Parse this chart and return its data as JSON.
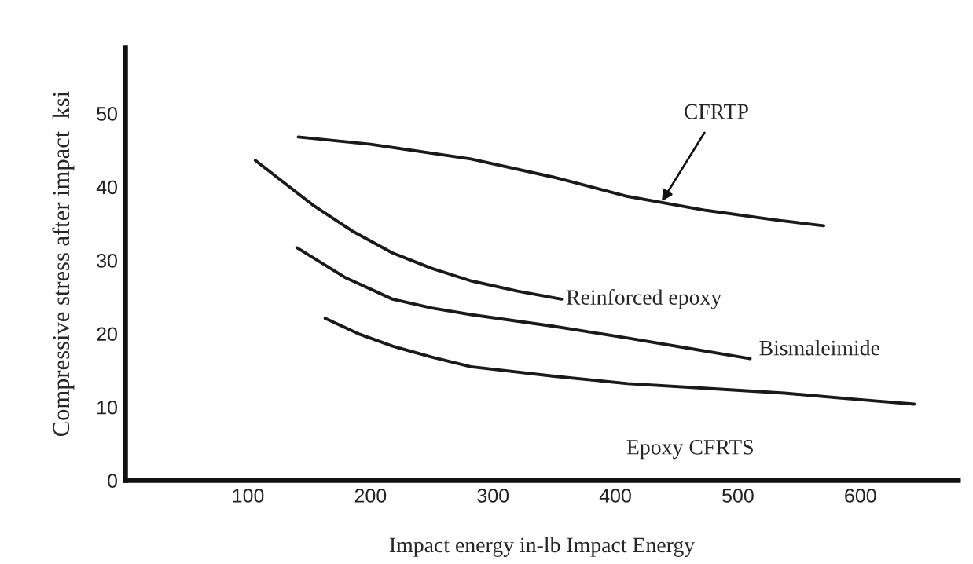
{
  "chart_data": {
    "type": "line",
    "xlabel": "Impact energy in-lb Impact Energy",
    "ylabel": "Compressive stress after impact  ksi",
    "xlim": [
      0,
      680
    ],
    "ylim": [
      0,
      59
    ],
    "xticks": [
      100,
      200,
      300,
      400,
      500,
      600
    ],
    "yticks": [
      0,
      10,
      20,
      30,
      40,
      50
    ],
    "grid": false,
    "legend": false,
    "marker": "none",
    "line_style": "solid",
    "color": "#1a1a1a",
    "series": [
      {
        "x": [
          141,
          200,
          282,
          350,
          410,
          474,
          530,
          570
        ],
        "values": [
          46.8,
          45.8,
          43.8,
          41.3,
          38.7,
          36.8,
          35.5,
          34.7
        ]
      },
      {
        "x": [
          106,
          130,
          154,
          185,
          218,
          250,
          282,
          320,
          356
        ],
        "values": [
          43.6,
          40.5,
          37.4,
          34.0,
          31.0,
          28.9,
          27.2,
          25.8,
          24.7
        ]
      },
      {
        "x": [
          140,
          180,
          218,
          250,
          282,
          350,
          410,
          460,
          510
        ],
        "values": [
          31.7,
          27.6,
          24.7,
          23.5,
          22.6,
          21.0,
          19.4,
          18.0,
          16.6
        ]
      },
      {
        "x": [
          163,
          190,
          218,
          250,
          282,
          350,
          410,
          470,
          538,
          600,
          644
        ],
        "values": [
          22.1,
          20.0,
          18.3,
          16.8,
          15.5,
          14.2,
          13.2,
          12.6,
          11.9,
          11.0,
          10.4
        ]
      }
    ],
    "annotations": [
      {
        "text": "CFRTP",
        "x": 436,
        "y": 37.5
      },
      {
        "text": "Reinforced epoxy",
        "x": 356,
        "y": 24.7
      },
      {
        "text": "Bismaleimide",
        "x": 510,
        "y": 16.6
      },
      {
        "text": "Epoxy CFRTS",
        "x": 470,
        "y": 12.6
      }
    ]
  }
}
